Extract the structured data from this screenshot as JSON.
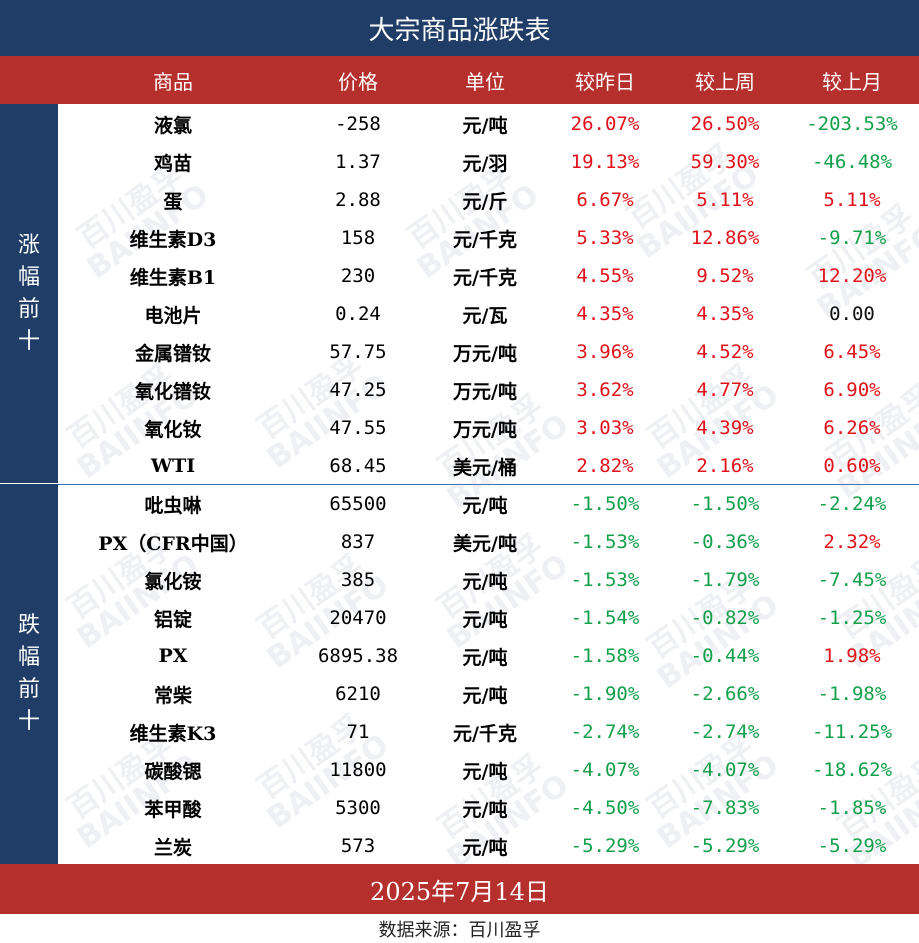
{
  "title": "大宗商品涨跌表",
  "headers": {
    "name": "商品",
    "price": "价格",
    "unit": "单位",
    "day": "较昨日",
    "week": "较上周",
    "month": "较上月"
  },
  "sections": {
    "gainers_label": [
      "涨",
      "幅",
      "前",
      "十"
    ],
    "losers_label": [
      "跌",
      "幅",
      "前",
      "十"
    ]
  },
  "rows": [
    {
      "name": "液氯",
      "price": "-258",
      "unit": "元/吨",
      "day": "26.07%",
      "week": "26.50%",
      "month": "-203.53%"
    },
    {
      "name": "鸡苗",
      "price": "1.37",
      "unit": "元/羽",
      "day": "19.13%",
      "week": "59.30%",
      "month": "-46.48%"
    },
    {
      "name": "蛋",
      "price": "2.88",
      "unit": "元/斤",
      "day": "6.67%",
      "week": "5.11%",
      "month": "5.11%"
    },
    {
      "name": "维生素D3",
      "price": "158",
      "unit": "元/千克",
      "day": "5.33%",
      "week": "12.86%",
      "month": "-9.71%"
    },
    {
      "name": "维生素B1",
      "price": "230",
      "unit": "元/千克",
      "day": "4.55%",
      "week": "9.52%",
      "month": "12.20%"
    },
    {
      "name": "电池片",
      "price": "0.24",
      "unit": "元/瓦",
      "day": "4.35%",
      "week": "4.35%",
      "month": "0.00"
    },
    {
      "name": "金属镨钕",
      "price": "57.75",
      "unit": "万元/吨",
      "day": "3.96%",
      "week": "4.52%",
      "month": "6.45%"
    },
    {
      "name": "氧化镨钕",
      "price": "47.25",
      "unit": "万元/吨",
      "day": "3.62%",
      "week": "4.77%",
      "month": "6.90%"
    },
    {
      "name": "氧化钕",
      "price": "47.55",
      "unit": "万元/吨",
      "day": "3.03%",
      "week": "4.39%",
      "month": "6.26%"
    },
    {
      "name": "WTI",
      "price": "68.45",
      "unit": "美元/桶",
      "day": "2.82%",
      "week": "2.16%",
      "month": "0.60%"
    },
    {
      "name": "吡虫啉",
      "price": "65500",
      "unit": "元/吨",
      "day": "-1.50%",
      "week": "-1.50%",
      "month": "-2.24%"
    },
    {
      "name": "PX（CFR中国）",
      "price": "837",
      "unit": "美元/吨",
      "day": "-1.53%",
      "week": "-0.36%",
      "month": "2.32%"
    },
    {
      "name": "氯化铵",
      "price": "385",
      "unit": "元/吨",
      "day": "-1.53%",
      "week": "-1.79%",
      "month": "-7.45%"
    },
    {
      "name": "铝锭",
      "price": "20470",
      "unit": "元/吨",
      "day": "-1.54%",
      "week": "-0.82%",
      "month": "-1.25%"
    },
    {
      "name": "PX",
      "price": "6895.38",
      "unit": "元/吨",
      "day": "-1.58%",
      "week": "-0.44%",
      "month": "1.98%"
    },
    {
      "name": "常柴",
      "price": "6210",
      "unit": "元/吨",
      "day": "-1.90%",
      "week": "-2.66%",
      "month": "-1.98%"
    },
    {
      "name": "维生素K3",
      "price": "71",
      "unit": "元/千克",
      "day": "-2.74%",
      "week": "-2.74%",
      "month": "-11.25%"
    },
    {
      "name": "碳酸锶",
      "price": "11800",
      "unit": "元/吨",
      "day": "-4.07%",
      "week": "-4.07%",
      "month": "-18.62%"
    },
    {
      "name": "苯甲酸",
      "price": "5300",
      "unit": "元/吨",
      "day": "-4.50%",
      "week": "-7.83%",
      "month": "-1.85%"
    },
    {
      "name": "兰炭",
      "price": "573",
      "unit": "元/吨",
      "day": "-5.29%",
      "week": "-5.29%",
      "month": "-5.29%"
    }
  ],
  "date": "2025年7月14日",
  "source": "数据来源：百川盈孚",
  "watermark": {
    "cn": "百川盈孚",
    "en": "BAIINFO"
  },
  "colors": {
    "up": "#e1121a",
    "down": "#13a04a",
    "navy": "#1f3d66",
    "red_bar": "#b5302d"
  }
}
